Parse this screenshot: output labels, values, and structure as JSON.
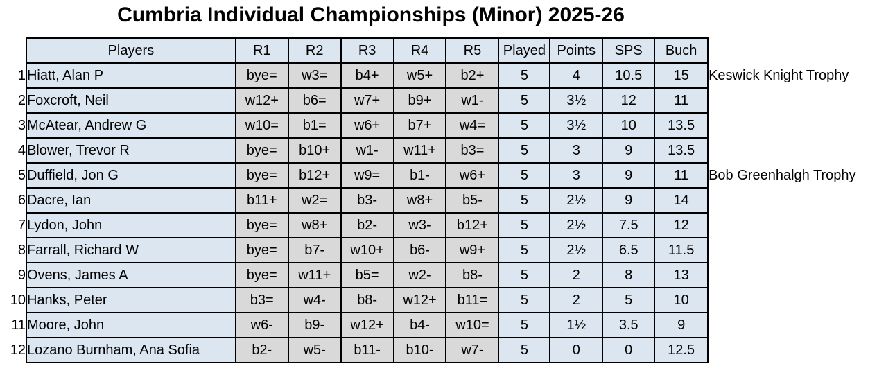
{
  "title": "Cumbria Individual Championships (Minor) 2025-26",
  "colors": {
    "cell_blue": "#dce6f1",
    "cell_grey": "#d9d9d9",
    "border": "#000000",
    "text": "#000000",
    "page_bg": "#ffffff"
  },
  "standings": {
    "columns": [
      "Players",
      "R1",
      "R2",
      "R3",
      "R4",
      "R5",
      "Played",
      "Points",
      "SPS",
      "Buch"
    ],
    "rows": [
      {
        "rank": "1",
        "player": "Hiatt, Alan P",
        "results": [
          "bye=",
          "w3=",
          "b4+",
          "w5+",
          "b2+"
        ],
        "played": "5",
        "points": "4",
        "sps": "10.5",
        "buch": "15",
        "annotation": "Keswick Knight Trophy"
      },
      {
        "rank": "2",
        "player": "Foxcroft, Neil",
        "results": [
          "w12+",
          "b6=",
          "w7+",
          "b9+",
          "w1-"
        ],
        "played": "5",
        "points": "3½",
        "sps": "12",
        "buch": "11",
        "annotation": ""
      },
      {
        "rank": "3",
        "player": "McAtear, Andrew G",
        "results": [
          "w10=",
          "b1=",
          "w6+",
          "b7+",
          "w4="
        ],
        "played": "5",
        "points": "3½",
        "sps": "10",
        "buch": "13.5",
        "annotation": ""
      },
      {
        "rank": "4",
        "player": "Blower, Trevor R",
        "results": [
          "bye=",
          "b10+",
          "w1-",
          "w11+",
          "b3="
        ],
        "played": "5",
        "points": "3",
        "sps": "9",
        "buch": "13.5",
        "annotation": ""
      },
      {
        "rank": "5",
        "player": "Duffield, Jon G",
        "results": [
          "bye=",
          "b12+",
          "w9=",
          "b1-",
          "w6+"
        ],
        "played": "5",
        "points": "3",
        "sps": "9",
        "buch": "11",
        "annotation": "Bob Greenhalgh Trophy"
      },
      {
        "rank": "6",
        "player": "Dacre, Ian",
        "results": [
          "b11+",
          "w2=",
          "b3-",
          "w8+",
          "b5-"
        ],
        "played": "5",
        "points": "2½",
        "sps": "9",
        "buch": "14",
        "annotation": ""
      },
      {
        "rank": "7",
        "player": "Lydon, John",
        "results": [
          "bye=",
          "w8+",
          "b2-",
          "w3-",
          "b12+"
        ],
        "played": "5",
        "points": "2½",
        "sps": "7.5",
        "buch": "12",
        "annotation": ""
      },
      {
        "rank": "8",
        "player": "Farrall, Richard W",
        "results": [
          "bye=",
          "b7-",
          "w10+",
          "b6-",
          "w9+"
        ],
        "played": "5",
        "points": "2½",
        "sps": "6.5",
        "buch": "11.5",
        "annotation": ""
      },
      {
        "rank": "9",
        "player": "Ovens, James A",
        "results": [
          "bye=",
          "w11+",
          "b5=",
          "w2-",
          "b8-"
        ],
        "played": "5",
        "points": "2",
        "sps": "8",
        "buch": "13",
        "annotation": ""
      },
      {
        "rank": "10",
        "player": "Hanks, Peter",
        "results": [
          "b3=",
          "w4-",
          "b8-",
          "w12+",
          "b11="
        ],
        "played": "5",
        "points": "2",
        "sps": "5",
        "buch": "10",
        "annotation": ""
      },
      {
        "rank": "11",
        "player": "Moore, John",
        "results": [
          "w6-",
          "b9-",
          "w12+",
          "b4-",
          "w10="
        ],
        "played": "5",
        "points": "1½",
        "sps": "3.5",
        "buch": "9",
        "annotation": ""
      },
      {
        "rank": "12",
        "player": "Lozano Burnham, Ana Sofia",
        "results": [
          "b2-",
          "w5-",
          "b11-",
          "b10-",
          "w7-"
        ],
        "played": "5",
        "points": "0",
        "sps": "0",
        "buch": "12.5",
        "annotation": ""
      }
    ]
  }
}
